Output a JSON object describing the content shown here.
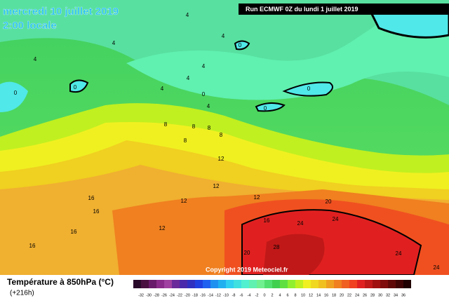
{
  "header": {
    "title": "mercredi 10 juillet 2019",
    "time": "2:00 locale",
    "run": "Run ECMWF 0Z du lundi 1 juillet 2019"
  },
  "copyright": "Copyright 2019 Meteociel.fr",
  "legend": {
    "title": "Température à 850hPa (°C)",
    "lead": "(+216h)",
    "scale": [
      -32,
      -30,
      -28,
      -26,
      -24,
      -22,
      -20,
      -18,
      -16,
      -14,
      -12,
      -10,
      -8,
      -6,
      -4,
      -2,
      0,
      2,
      4,
      6,
      8,
      10,
      12,
      14,
      16,
      18,
      20,
      22,
      24,
      26,
      28,
      30,
      32,
      34,
      36
    ],
    "colors": [
      "#2a0a2a",
      "#4a1040",
      "#6a1a6a",
      "#8a2a8a",
      "#a040a0",
      "#6a2a9a",
      "#4a2aaa",
      "#3030c0",
      "#2040e0",
      "#2060f0",
      "#2090f0",
      "#20b0f0",
      "#30d0f0",
      "#40e0e0",
      "#50f0d0",
      "#60f0b0",
      "#70f090",
      "#50e070",
      "#40d050",
      "#60e040",
      "#90f030",
      "#c0f020",
      "#f0f020",
      "#f0d820",
      "#f0c020",
      "#f0a020",
      "#f08020",
      "#f06020",
      "#f04020",
      "#e02020",
      "#c01818",
      "#a01010",
      "#800c0c",
      "#600808",
      "#400404",
      "#200000"
    ]
  },
  "contours": [
    4,
    4,
    4,
    4,
    0,
    0,
    0,
    4,
    4,
    4,
    0,
    4,
    0,
    0,
    8,
    8,
    8,
    8,
    8,
    12,
    12,
    12,
    12,
    12,
    16,
    16,
    16,
    16,
    16,
    20,
    24,
    24,
    20,
    28,
    24,
    24
  ]
}
